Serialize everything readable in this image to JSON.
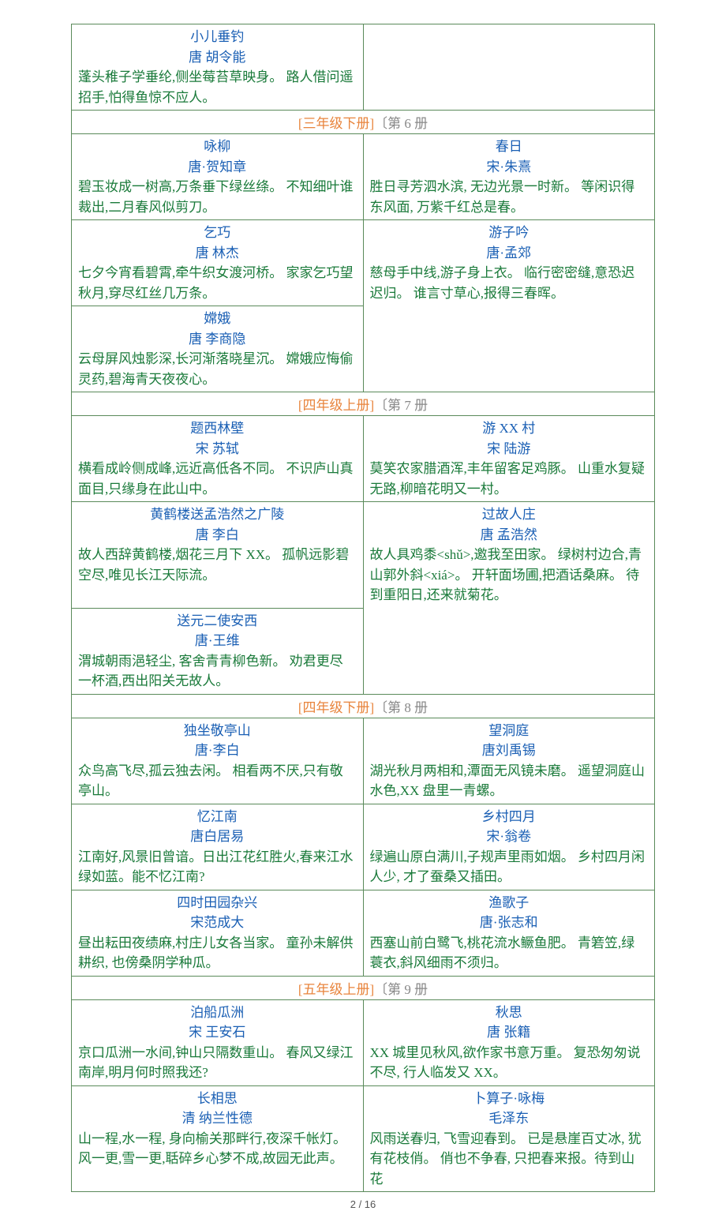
{
  "colors": {
    "border": "#5a8a5a",
    "title": "#1a5fb4",
    "body": "#1a7a3a",
    "header_orange": "#e8843c",
    "header_gray": "#888888",
    "background": "#ffffff"
  },
  "typography": {
    "font_family": "KaiTi",
    "body_fontsize": 17,
    "line_height": 1.5
  },
  "footer": "2 / 16",
  "top_row": {
    "left": {
      "title": "小儿垂钓",
      "author": "唐 胡令能",
      "body": "蓬头稚子学垂纶,侧坐莓苔草映身。\n路人借问遥招手,怕得鱼惊不应人。"
    },
    "right": {
      "title": "",
      "author": "",
      "body": ""
    }
  },
  "sections": [
    {
      "header_orange": "[三年级下册]",
      "header_gray": "〔第 6 册",
      "rows": [
        {
          "left": {
            "title": "咏柳",
            "author": "唐·贺知章",
            "body": "碧玉妆成一树高,万条垂下绿丝绦。\n不知细叶谁裁出,二月春风似剪刀。"
          },
          "right": {
            "title": "春日",
            "author": "宋·朱熹",
            "body": "胜日寻芳泗水滨, 无边光景一时新。\n等闲识得东风面, 万紫千红总是春。"
          }
        },
        {
          "left": {
            "title": "乞巧",
            "author": "唐 林杰",
            "body": "七夕今宵看碧霄,牵牛织女渡河桥。\n家家乞巧望秋月,穿尽红丝几万条。"
          },
          "right": {
            "title": "游子吟",
            "author": "唐·孟郊",
            "body": "慈母手中线,游子身上衣。\n临行密密缝,意恐迟迟归。\n谁言寸草心,报得三春晖。"
          }
        },
        {
          "left": {
            "title": "嫦娥",
            "author": "唐 李商隐",
            "body": "云母屏风烛影深,长河渐落晓星沉。\n嫦娥应悔偷灵药,碧海青天夜夜心。"
          },
          "right": null
        }
      ]
    },
    {
      "header_orange": "[四年级上册]",
      "header_gray": "〔第 7 册",
      "rows": [
        {
          "left": {
            "title": "题西林壁",
            "author": "宋    苏轼",
            "body": "横看成岭侧成峰,远近高低各不同。\n不识庐山真面目,只缘身在此山中。"
          },
          "right": {
            "title": "游 XX 村",
            "author": "宋 陆游",
            "body": "莫笑农家腊酒浑,丰年留客足鸡豚。\n山重水复疑无路,柳暗花明又一村。"
          }
        },
        {
          "left": {
            "title": "黄鹤楼送孟浩然之广陵",
            "author": "唐 李白",
            "body": "故人西辞黄鹤楼,烟花三月下 XX。\n孤帆远影碧空尽,唯见长江天际流。"
          },
          "right": {
            "title": "过故人庄",
            "author": "唐 孟浩然",
            "body": "故人具鸡黍<shǔ>,邀我至田家。\n绿树村边合,青山郭外斜<xiá>。\n开轩面场圃,把酒话桑麻。\n待到重阳日,还来就菊花。"
          }
        },
        {
          "left": {
            "title": "送元二使安西",
            "author": "唐·王维",
            "body": "渭城朝雨浥轻尘, 客舍青青柳色新。\n劝君更尽一杯酒,西出阳关无故人。"
          },
          "right": null
        }
      ]
    },
    {
      "header_orange": "[四年级下册]",
      "header_gray": "〔第 8 册",
      "rows": [
        {
          "left": {
            "title": "独坐敬亭山",
            "author": "唐·李白",
            "body": "众鸟高飞尽,孤云独去闲。\n相看两不厌,只有敬亭山。"
          },
          "right": {
            "title": "望洞庭",
            "author": "唐刘禹锡",
            "body": "湖光秋月两相和,潭面无风镜未磨。\n遥望洞庭山水色,XX 盘里一青螺。"
          }
        },
        {
          "left": {
            "title": "忆江南",
            "author": "唐白居易",
            "body": "江南好,风景旧曾谙。日出江花红胜火,春来江水绿如蓝。能不忆江南?"
          },
          "right": {
            "title": "乡村四月",
            "author": "宋·翁卷",
            "body": "绿遍山原白满川,子规声里雨如烟。\n乡村四月闲人少, 才了蚕桑又插田。"
          }
        },
        {
          "left": {
            "title": "四时田园杂兴",
            "author": "宋范成大",
            "body": "昼出耘田夜绩麻,村庄儿女各当家。\n童孙未解供耕织, 也傍桑阴学种瓜。"
          },
          "right": {
            "title": "渔歌子",
            "author": "唐·张志和",
            "body": "西塞山前白鹭飞,桃花流水鳜鱼肥。\n青箬笠,绿蓑衣,斜风细雨不须归。"
          }
        }
      ]
    },
    {
      "header_orange": "[五年级上册]",
      "header_gray": "〔第 9 册",
      "rows": [
        {
          "left": {
            "title": "泊船瓜洲",
            "author": "宋 王安石",
            "body": "京口瓜洲一水间,钟山只隔数重山。\n春风又绿江南岸,明月何时照我还?"
          },
          "right": {
            "title": "秋思",
            "author": "唐 张籍",
            "body": "XX 城里见秋风,欲作家书意万重。\n复恐匆匆说不尽, 行人临发又 XX。"
          }
        },
        {
          "left": {
            "title": "长相思",
            "author": "清 纳兰性德",
            "body": "山一程,水一程, 身向榆关那畔行,夜深千帐灯。    风一更,雪一更,聒碎乡心梦不成,故园无此声。"
          },
          "right": {
            "title": "卜算子·咏梅",
            "author": "毛泽东",
            "body": "风雨送春归, 飞雪迎春到。\n已是悬崖百丈冰, 犹有花枝俏。\n俏也不争春, 只把春来报。待到山花"
          }
        }
      ]
    }
  ]
}
